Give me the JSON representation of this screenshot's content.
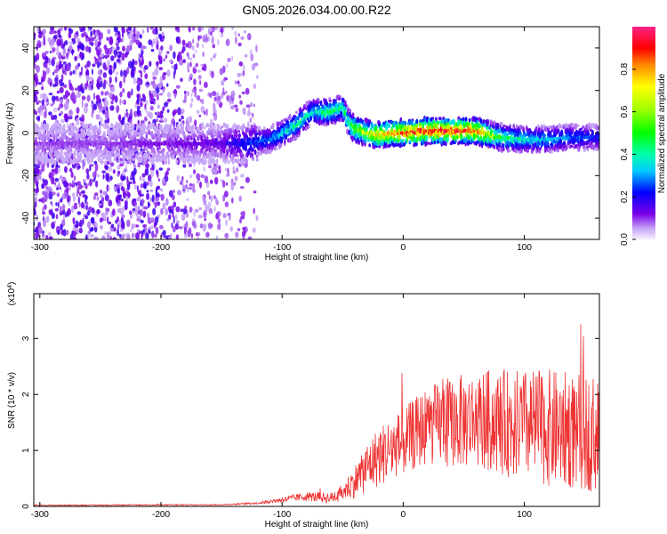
{
  "title": "GN05.2026.034.00.00.R22",
  "chart_data": [
    {
      "type": "heatmap",
      "xlabel": "Height of straight line (km)",
      "ylabel": "Frequency (Hz)",
      "xlim": [
        -305,
        162
      ],
      "ylim": [
        -50,
        50
      ],
      "x_ticks": [
        -300,
        -200,
        -100,
        0,
        100
      ],
      "y_ticks": [
        -40,
        -20,
        0,
        20,
        40
      ],
      "colorbar": {
        "label": "Normalized spectral amplitude",
        "range": [
          0,
          1
        ],
        "ticks": [
          "0.0",
          "0.2",
          "0.4",
          "0.6",
          "0.8"
        ]
      },
      "ridge": {
        "x": [
          -305,
          -250,
          -200,
          -150,
          -130,
          -110,
          -90,
          -75,
          -60,
          -50,
          -45,
          -40,
          -30,
          -20,
          -10,
          0,
          20,
          40,
          60,
          80,
          100,
          120,
          140,
          162
        ],
        "freq": [
          -5,
          -5,
          -5,
          -5,
          -5,
          -3,
          3,
          10,
          10,
          12,
          5,
          2,
          0,
          -1,
          0,
          0,
          1,
          1,
          1,
          -2,
          -3,
          -3,
          -2,
          -2
        ],
        "amplitude": [
          0.1,
          0.1,
          0.12,
          0.15,
          0.25,
          0.3,
          0.45,
          0.4,
          0.5,
          0.45,
          0.5,
          0.6,
          0.7,
          0.8,
          0.85,
          0.92,
          0.95,
          0.95,
          0.9,
          0.5,
          0.4,
          0.35,
          0.3,
          0.25
        ]
      }
    },
    {
      "type": "line",
      "xlabel": "Height of straight line (km)",
      "ylabel": "SNR (10 * v/v)",
      "y_multiplier": "(x10",
      "y_multiplier_exp": "4",
      "y_multiplier_close": ")",
      "xlim": [
        -305,
        162
      ],
      "ylim": [
        0,
        3.8
      ],
      "x_ticks": [
        -300,
        -200,
        -100,
        0,
        100
      ],
      "y_ticks": [
        0,
        1,
        2,
        3
      ],
      "color": "#ee3333",
      "envelope": {
        "x": [
          -305,
          -150,
          -120,
          -100,
          -80,
          -60,
          -50,
          -40,
          -30,
          -20,
          0,
          20,
          40,
          60,
          80,
          100,
          120,
          140,
          162
        ],
        "mean": [
          0.02,
          0.03,
          0.06,
          0.12,
          0.18,
          0.15,
          0.25,
          0.45,
          0.7,
          0.9,
          1.15,
          1.45,
          1.5,
          1.55,
          1.5,
          1.45,
          1.4,
          1.35,
          1.3
        ],
        "spread": [
          0.01,
          0.01,
          0.02,
          0.05,
          0.08,
          0.1,
          0.15,
          0.3,
          0.45,
          0.55,
          0.6,
          0.7,
          0.8,
          0.9,
          0.95,
          1.0,
          1.05,
          1.05,
          1.05
        ]
      }
    }
  ]
}
